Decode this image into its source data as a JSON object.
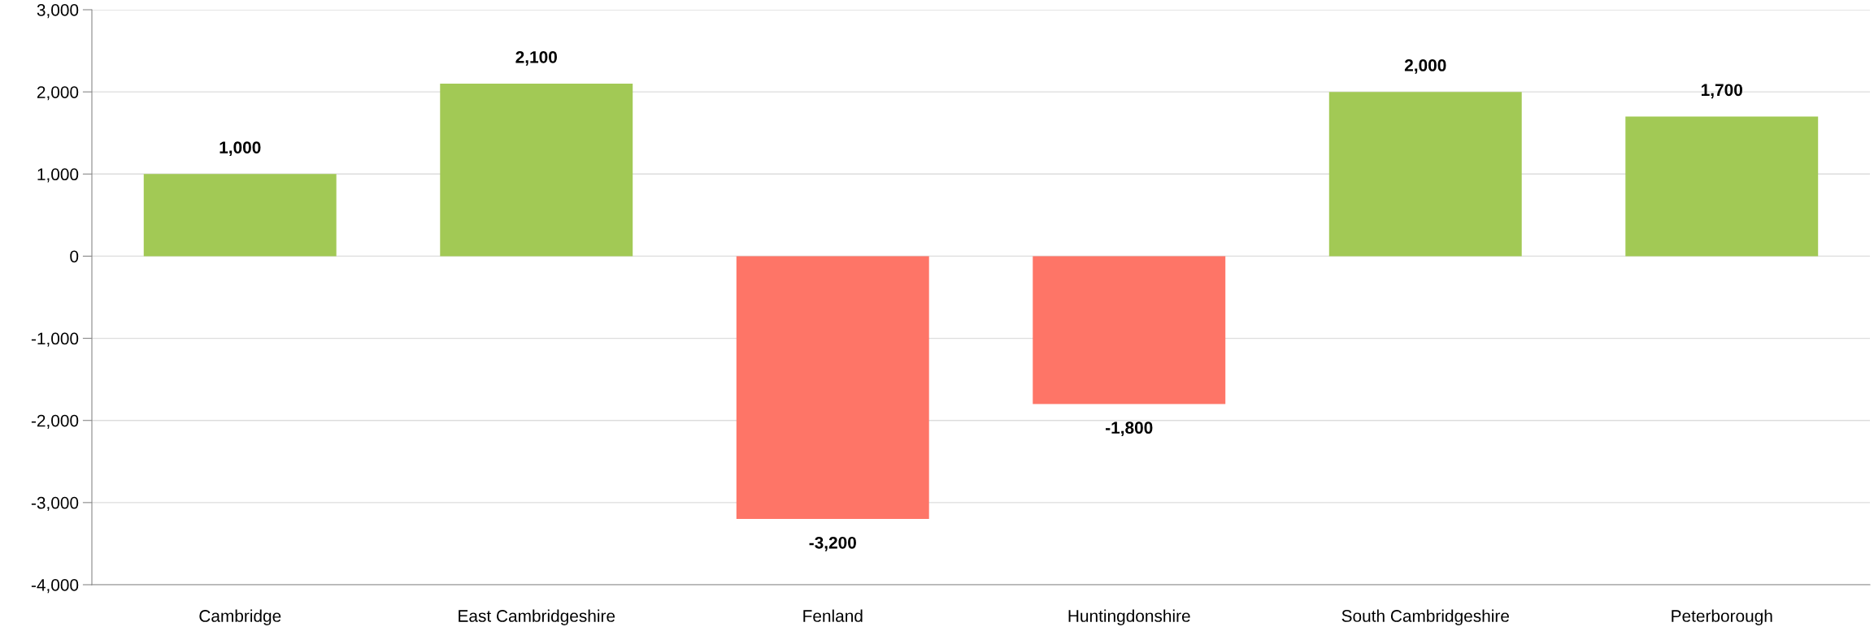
{
  "chart_data": {
    "type": "bar",
    "categories": [
      "Cambridge",
      "East Cambridgeshire",
      "Fenland",
      "Huntingdonshire",
      "South Cambridgeshire",
      "Peterborough"
    ],
    "values": [
      1000,
      2100,
      -3200,
      -1800,
      2000,
      1700
    ],
    "colors": [
      "#a2c955",
      "#a2c955",
      "#fe7567",
      "#fe7567",
      "#a2c955",
      "#a2c955"
    ],
    "value_labels": [
      "1,000",
      "2,100",
      "-3,200",
      "-1,800",
      "2,000",
      "1,700"
    ],
    "ylim": [
      -4000,
      3000
    ],
    "yticks": [
      {
        "value": -4000,
        "label": "-4,000"
      },
      {
        "value": -3000,
        "label": "-3,000"
      },
      {
        "value": -2000,
        "label": "-2,000"
      },
      {
        "value": -1000,
        "label": "-1,000"
      },
      0,
      {
        "value": 1000,
        "label": "1,000"
      },
      {
        "value": 2000,
        "label": "2,000"
      },
      {
        "value": 3000,
        "label": "3,000"
      }
    ],
    "grid": "y",
    "legend": false
  }
}
